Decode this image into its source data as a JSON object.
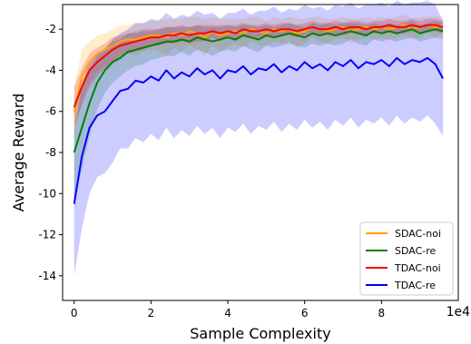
{
  "chart_data": {
    "type": "line",
    "title": "",
    "xlabel": "Sample Complexity",
    "ylabel": "Average Reward",
    "x_offset_label": "1e4",
    "xlim": [
      -3000,
      100000
    ],
    "ylim": [
      -15.2,
      -0.8
    ],
    "x_ticks": [
      0,
      20000,
      40000,
      60000,
      80000
    ],
    "x_tick_labels": [
      "0",
      "2",
      "4",
      "6",
      "8"
    ],
    "y_ticks": [
      -14,
      -12,
      -10,
      -8,
      -6,
      -4,
      -2
    ],
    "y_tick_labels": [
      "-14",
      "-12",
      "-10",
      "-8",
      "-6",
      "-4",
      "-2"
    ],
    "grid": false,
    "legend_position": "lower-right",
    "x": [
      0,
      2000,
      4000,
      6000,
      8000,
      10000,
      12000,
      14000,
      16000,
      18000,
      20000,
      22000,
      24000,
      26000,
      28000,
      30000,
      32000,
      34000,
      36000,
      38000,
      40000,
      42000,
      44000,
      46000,
      48000,
      50000,
      52000,
      54000,
      56000,
      58000,
      60000,
      62000,
      64000,
      66000,
      68000,
      70000,
      72000,
      74000,
      76000,
      78000,
      80000,
      82000,
      84000,
      86000,
      88000,
      90000,
      92000,
      94000,
      96000
    ],
    "series": [
      {
        "name": "SDAC-noi",
        "color": "#FFA500",
        "values": [
          -6.0,
          -4.3,
          -3.6,
          -3.2,
          -3.0,
          -2.8,
          -2.6,
          -2.5,
          -2.5,
          -2.4,
          -2.3,
          -2.3,
          -2.4,
          -2.2,
          -2.3,
          -2.1,
          -2.2,
          -2.4,
          -2.1,
          -2.3,
          -2.2,
          -2.1,
          -2.2,
          -2.0,
          -2.1,
          -2.2,
          -2.0,
          -2.1,
          -2.0,
          -2.2,
          -2.1,
          -1.9,
          -2.0,
          -2.1,
          -2.0,
          -1.9,
          -2.1,
          -2.0,
          -1.9,
          -2.0,
          -1.9,
          -2.0,
          -1.9,
          -1.8,
          -2.0,
          -1.9,
          -1.8,
          -1.9,
          -1.8
        ],
        "band": [
          1.2,
          1.3,
          1.0,
          0.9,
          0.8,
          0.8,
          0.8,
          0.7,
          0.8,
          0.7,
          0.7,
          0.8,
          0.9,
          0.7,
          0.8,
          0.7,
          0.8,
          0.9,
          0.7,
          0.8,
          0.7,
          0.6,
          0.7,
          0.6,
          0.7,
          0.6,
          0.6,
          0.6,
          0.6,
          0.7,
          0.6,
          0.5,
          0.6,
          0.6,
          0.5,
          0.5,
          0.6,
          0.5,
          0.5,
          0.5,
          0.5,
          0.5,
          0.5,
          0.5,
          0.5,
          0.5,
          0.4,
          0.5,
          0.4
        ]
      },
      {
        "name": "SDAC-re",
        "color": "#008000",
        "values": [
          -8.0,
          -6.8,
          -5.6,
          -4.6,
          -4.0,
          -3.6,
          -3.4,
          -3.1,
          -3.0,
          -2.9,
          -2.8,
          -2.7,
          -2.6,
          -2.6,
          -2.5,
          -2.6,
          -2.4,
          -2.5,
          -2.6,
          -2.5,
          -2.4,
          -2.5,
          -2.3,
          -2.4,
          -2.5,
          -2.3,
          -2.4,
          -2.3,
          -2.2,
          -2.3,
          -2.4,
          -2.2,
          -2.3,
          -2.2,
          -2.3,
          -2.2,
          -2.1,
          -2.2,
          -2.3,
          -2.1,
          -2.2,
          -2.1,
          -2.2,
          -2.1,
          -2.0,
          -2.2,
          -2.1,
          -2.0,
          -2.1
        ],
        "band": [
          2.5,
          2.0,
          1.6,
          1.3,
          1.1,
          1.0,
          0.9,
          0.9,
          0.8,
          0.8,
          0.7,
          0.7,
          0.7,
          0.7,
          0.6,
          0.7,
          0.6,
          0.6,
          0.7,
          0.6,
          0.6,
          0.6,
          0.5,
          0.6,
          0.6,
          0.5,
          0.5,
          0.5,
          0.5,
          0.5,
          0.5,
          0.5,
          0.5,
          0.5,
          0.5,
          0.5,
          0.4,
          0.5,
          0.5,
          0.4,
          0.4,
          0.4,
          0.4,
          0.4,
          0.4,
          0.4,
          0.4,
          0.4,
          0.4
        ]
      },
      {
        "name": "TDAC-noi",
        "color": "#FF0000",
        "values": [
          -5.8,
          -4.8,
          -4.0,
          -3.6,
          -3.3,
          -3.0,
          -2.8,
          -2.7,
          -2.6,
          -2.5,
          -2.4,
          -2.4,
          -2.3,
          -2.3,
          -2.2,
          -2.3,
          -2.2,
          -2.2,
          -2.1,
          -2.2,
          -2.1,
          -2.2,
          -2.0,
          -2.1,
          -2.1,
          -2.0,
          -2.1,
          -2.0,
          -2.0,
          -2.1,
          -2.0,
          -1.9,
          -2.0,
          -2.0,
          -1.9,
          -2.0,
          -1.9,
          -1.9,
          -2.0,
          -1.9,
          -1.9,
          -1.8,
          -1.9,
          -1.9,
          -1.8,
          -1.9,
          -1.8,
          -1.8,
          -1.9
        ],
        "band": [
          1.0,
          0.9,
          0.8,
          0.7,
          0.6,
          0.6,
          0.5,
          0.5,
          0.5,
          0.5,
          0.4,
          0.4,
          0.4,
          0.4,
          0.4,
          0.4,
          0.4,
          0.4,
          0.3,
          0.4,
          0.3,
          0.4,
          0.3,
          0.3,
          0.3,
          0.3,
          0.3,
          0.3,
          0.3,
          0.3,
          0.3,
          0.3,
          0.3,
          0.3,
          0.3,
          0.3,
          0.3,
          0.3,
          0.3,
          0.3,
          0.3,
          0.3,
          0.3,
          0.3,
          0.3,
          0.3,
          0.3,
          0.3,
          0.3
        ]
      },
      {
        "name": "TDAC-re",
        "color": "#0000FF",
        "values": [
          -10.5,
          -8.2,
          -6.8,
          -6.2,
          -6.0,
          -5.5,
          -5.0,
          -4.9,
          -4.5,
          -4.6,
          -4.3,
          -4.5,
          -4.0,
          -4.4,
          -4.1,
          -4.3,
          -3.9,
          -4.2,
          -4.0,
          -4.4,
          -4.0,
          -4.1,
          -3.8,
          -4.2,
          -3.9,
          -4.0,
          -3.7,
          -4.1,
          -3.8,
          -4.0,
          -3.6,
          -3.9,
          -3.7,
          -4.0,
          -3.6,
          -3.8,
          -3.5,
          -3.9,
          -3.6,
          -3.7,
          -3.5,
          -3.8,
          -3.4,
          -3.7,
          -3.5,
          -3.6,
          -3.4,
          -3.7,
          -4.4
        ],
        "band": [
          3.5,
          3.5,
          3.2,
          3.0,
          3.0,
          3.0,
          2.8,
          2.9,
          2.8,
          2.9,
          2.8,
          2.9,
          2.8,
          2.9,
          2.8,
          2.9,
          2.8,
          2.9,
          2.8,
          2.9,
          2.8,
          2.9,
          2.8,
          2.9,
          2.8,
          2.9,
          2.8,
          2.9,
          2.8,
          2.9,
          2.8,
          2.9,
          2.8,
          2.9,
          2.8,
          2.9,
          2.8,
          2.9,
          2.8,
          2.9,
          2.8,
          2.9,
          2.8,
          2.9,
          2.8,
          2.9,
          2.8,
          2.9,
          2.8
        ]
      }
    ]
  }
}
